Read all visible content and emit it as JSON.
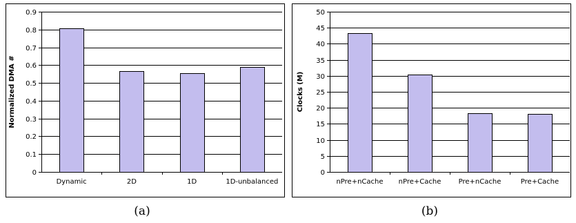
{
  "chart_data": [
    {
      "type": "bar",
      "caption": "(a)",
      "title": "",
      "xlabel": "",
      "ylabel": "Normalized DMA #",
      "categories": [
        "Dynamic",
        "2D",
        "1D",
        "1D-unbalanced"
      ],
      "values": [
        0.805,
        0.568,
        0.555,
        0.588
      ],
      "ylim": [
        0,
        0.9
      ],
      "yticks": [
        "0",
        "0.1",
        "0.2",
        "0.3",
        "0.4",
        "0.5",
        "0.6",
        "0.7",
        "0.8",
        "0.9"
      ],
      "grid": true,
      "bar_color": "#c3bdee"
    },
    {
      "type": "bar",
      "caption": "(b)",
      "title": "",
      "xlabel": "",
      "ylabel": "Clocks (M)",
      "categories": [
        "nPre+nCache",
        "nPre+Cache",
        "Pre+nCache",
        "Pre+Cache"
      ],
      "values": [
        43.3,
        30.3,
        18.3,
        18.1
      ],
      "ylim": [
        0,
        50
      ],
      "yticks": [
        "0",
        "5",
        "10",
        "15",
        "20",
        "25",
        "30",
        "35",
        "40",
        "45",
        "50"
      ],
      "grid": true,
      "bar_color": "#c3bdee"
    }
  ]
}
